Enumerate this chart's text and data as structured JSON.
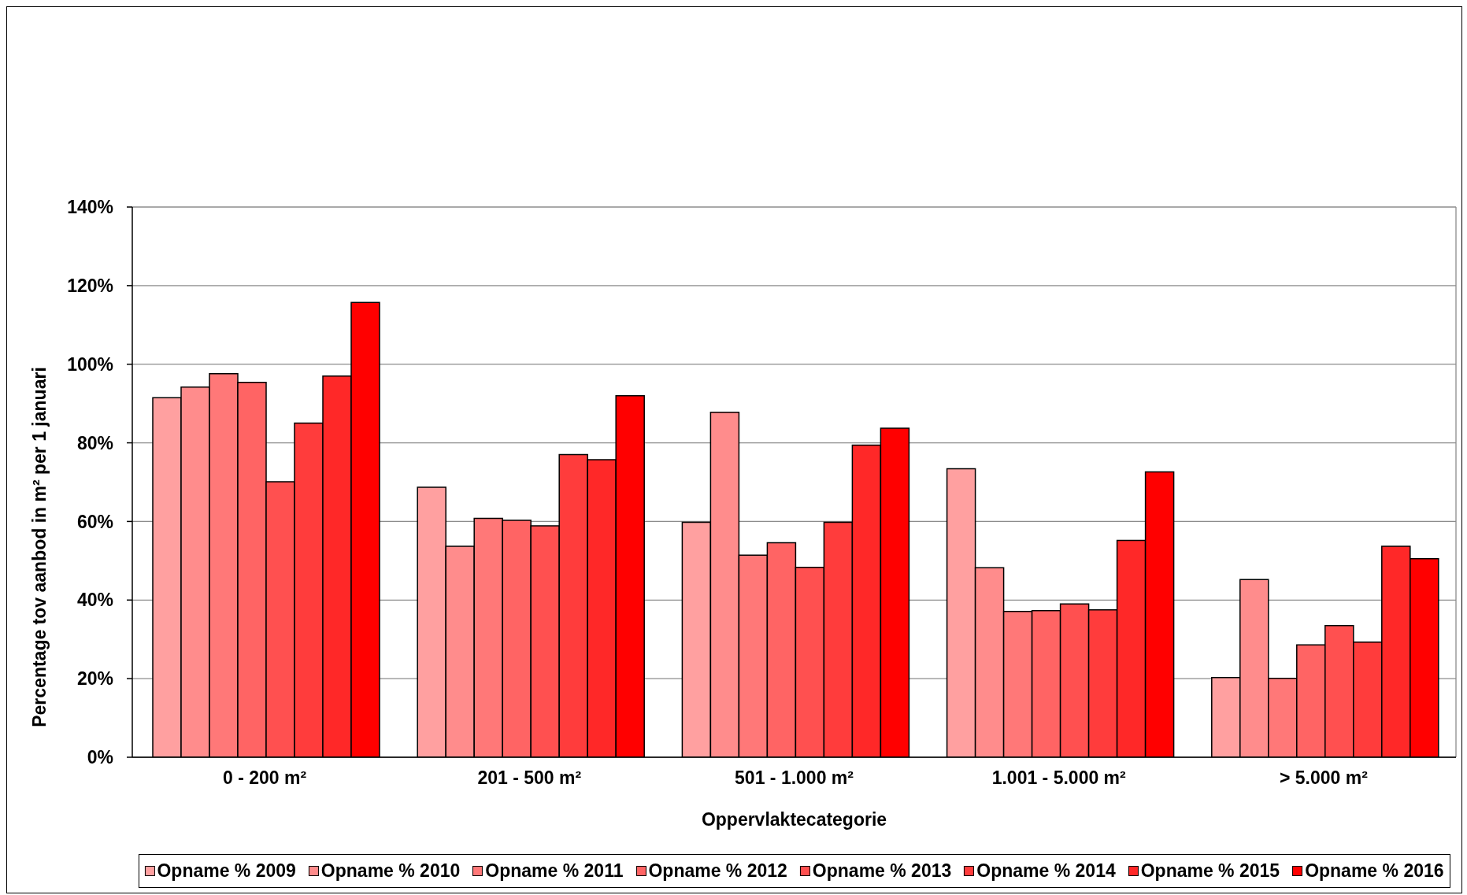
{
  "chart_data": {
    "type": "bar",
    "xlabel": "Oppervlaktecategorie",
    "ylabel": "Percentage tov aanbod in m² per 1 januari",
    "categories": [
      "0 - 200 m²",
      "201 - 500 m²",
      "501 - 1.000 m²",
      "1.001 - 5.000 m²",
      "> 5.000 m²"
    ],
    "series": [
      {
        "name": "Opname % 2009",
        "color": "#ffa0a0",
        "values": [
          91.5,
          68.7,
          59.8,
          73.4,
          20.3
        ]
      },
      {
        "name": "Opname % 2010",
        "color": "#ff8c8c",
        "values": [
          94.2,
          53.7,
          87.8,
          48.2,
          45.2
        ]
      },
      {
        "name": "Opname % 2011",
        "color": "#ff7878",
        "values": [
          97.6,
          60.8,
          51.4,
          37.1,
          20.1
        ]
      },
      {
        "name": "Opname % 2012",
        "color": "#ff6464",
        "values": [
          95.4,
          60.3,
          54.6,
          37.3,
          28.6
        ]
      },
      {
        "name": "Opname % 2013",
        "color": "#ff5050",
        "values": [
          70.1,
          58.9,
          48.3,
          39.0,
          33.5
        ]
      },
      {
        "name": "Opname % 2014",
        "color": "#ff3c3c",
        "values": [
          85.0,
          77.0,
          59.8,
          37.5,
          29.3
        ]
      },
      {
        "name": "Opname % 2015",
        "color": "#ff2828",
        "values": [
          97.0,
          75.7,
          79.4,
          55.2,
          53.7
        ]
      },
      {
        "name": "Opname % 2016",
        "color": "#ff0000",
        "values": [
          115.7,
          92.0,
          83.7,
          72.6,
          50.5
        ]
      }
    ],
    "ylim": [
      0,
      140
    ],
    "yticks": [
      {
        "value": 0,
        "label": "0%"
      },
      {
        "value": 20,
        "label": "20%"
      },
      {
        "value": 40,
        "label": "40%"
      },
      {
        "value": 60,
        "label": "60%"
      },
      {
        "value": 80,
        "label": "80%"
      },
      {
        "value": 100,
        "label": "100%"
      },
      {
        "value": 120,
        "label": "120%"
      },
      {
        "value": 140,
        "label": "140%"
      }
    ],
    "grid": "y",
    "legend": "bottom"
  }
}
